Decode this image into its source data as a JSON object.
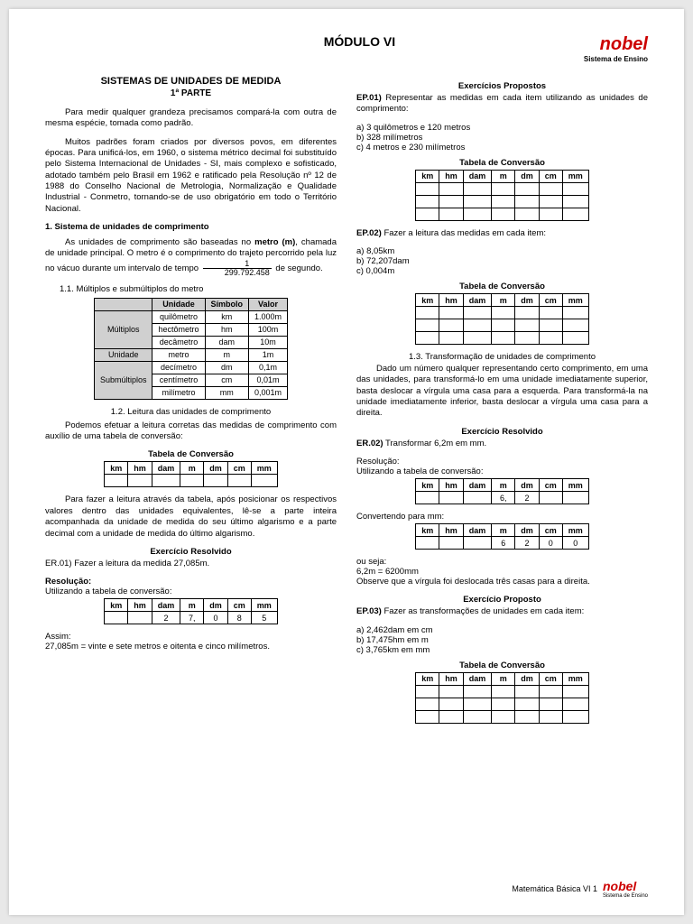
{
  "header": {
    "module": "MÓDULO VI",
    "brand": "nobel",
    "brand_sub": "Sistema de Ensino"
  },
  "left": {
    "title": "SISTEMAS DE UNIDADES DE MEDIDA",
    "subtitle": "1ª PARTE",
    "p1": "Para medir qualquer grandeza precisamos compará-la com outra de mesma espécie, tomada como padrão.",
    "p2": "Muitos padrões foram criados por diversos povos, em diferentes épocas. Para unificá-los, em 1960, o sistema métrico decimal foi substituído pelo Sistema Internacional de Unidades - SI, mais complexo e sofisticado, adotado também pelo Brasil em 1962 e ratificado pela Resolução nº 12 de 1988 do Conselho Nacional de Metrologia, Normalização e Qualidade Industrial - Conmetro, tornando-se de uso obrigatório em todo o Território Nacional.",
    "h1": "1. Sistema de unidades de comprimento",
    "p3a": "As unidades de comprimento são baseadas no ",
    "p3b": "metro (m)",
    "p3c": ", chamada de unidade principal. O metro é o comprimento do trajeto percorrido pela luz no vácuo durante um intervalo de tempo ",
    "frac_num": "1",
    "frac_den": "299.792.458",
    "p3d": " de segundo.",
    "sub11": "1.1. Múltiplos e submúltiplos do metro",
    "units_table": {
      "headers": [
        "",
        "Unidade",
        "Símbolo",
        "Valor"
      ],
      "rows": [
        {
          "g": "Múltiplos",
          "gspan": 3,
          "cells": [
            "quilômetro",
            "km",
            "1.000m"
          ]
        },
        {
          "cells": [
            "hectômetro",
            "hm",
            "100m"
          ]
        },
        {
          "cells": [
            "decâmetro",
            "dam",
            "10m"
          ]
        },
        {
          "g": "Unidade",
          "gspan": 1,
          "cells": [
            "metro",
            "m",
            "1m"
          ]
        },
        {
          "g": "Submúltiplos",
          "gspan": 3,
          "cells": [
            "decímetro",
            "dm",
            "0,1m"
          ]
        },
        {
          "cells": [
            "centímetro",
            "cm",
            "0,01m"
          ]
        },
        {
          "cells": [
            "milímetro",
            "mm",
            "0,001m"
          ]
        }
      ]
    },
    "sub12": "1.2. Leitura das unidades de comprimento",
    "p4": "Podemos efetuar a leitura corretas das medidas de comprimento com auxílio de uma tabela de conversão:",
    "tc_title": "Tabela de Conversão",
    "tc_headers": [
      "km",
      "hm",
      "dam",
      "m",
      "dm",
      "cm",
      "mm"
    ],
    "p5": "Para fazer a leitura através da tabela, após posicionar os respectivos valores dentro das unidades equivalentes, lê-se a parte inteira acompanhada da unidade de medida do seu último algarismo e a parte decimal com a unidade de medida do último algarismo.",
    "er_title": "Exercício Resolvido",
    "er1_q": "ER.01) Fazer a leitura da medida 27,085m.",
    "er1_res": "Resolução:",
    "er1_line": "Utilizando a tabela de conversão:",
    "er1_row": [
      "",
      "",
      "2",
      "7,",
      "0",
      "8",
      "5"
    ],
    "er1_assim": "Assim:",
    "er1_ans": "27,085m = vinte e sete metros e oitenta e cinco milímetros."
  },
  "right": {
    "ep_title": "Exercícios Propostos",
    "ep1_q": "EP.01) Representar as medidas em cada item utilizando as unidades de comprimento:",
    "ep1_a": "a) 3 quilômetros e 120 metros",
    "ep1_b": "b) 328 milímetros",
    "ep1_c": "c) 4 metros e 230 milímetros",
    "ep2_q": "EP.02) Fazer a leitura das medidas em cada item:",
    "ep2_a": "a) 8,05km",
    "ep2_b": "b) 72,207dam",
    "ep2_c": "c) 0,004m",
    "sub13": "1.3. Transformação de unidades de comprimento",
    "p6": "Dado um número qualquer representando certo comprimento, em uma das unidades, para transformá-lo em uma unidade imediatamente superior, basta deslocar a vírgula uma casa para a esquerda. Para transformá-la na unidade imediatamente inferior, basta deslocar a vírgula uma casa para a direita.",
    "er2_title": "Exercício Resolvido",
    "er2_q": "ER.02) Transformar 6,2m em mm.",
    "er2_res": "Resolução:",
    "er2_line1": "Utilizando a tabela de conversão:",
    "er2_row1": [
      "",
      "",
      "",
      "6,",
      "2",
      "",
      ""
    ],
    "er2_line2": "Convertendo para mm:",
    "er2_row2": [
      "",
      "",
      "",
      "6",
      "2",
      "0",
      "0"
    ],
    "er2_ou": "ou seja:",
    "er2_ans": "6,2m = 6200mm",
    "er2_obs": "Observe que a vírgula foi deslocada três casas para a direita.",
    "ep_prop": "Exercício Proposto",
    "ep3_q": "EP.03) Fazer as transformações de unidades em cada item:",
    "ep3_a": "a) 2,462dam em cm",
    "ep3_b": "b) 17,475hm em m",
    "ep3_c": "c) 3,765km em mm"
  },
  "footer": {
    "text": "Matemática Básica VI  1",
    "brand": "nobel",
    "brand_sub": "Sistema de Ensino"
  },
  "conv_headers": [
    "km",
    "hm",
    "dam",
    "m",
    "dm",
    "cm",
    "mm"
  ]
}
